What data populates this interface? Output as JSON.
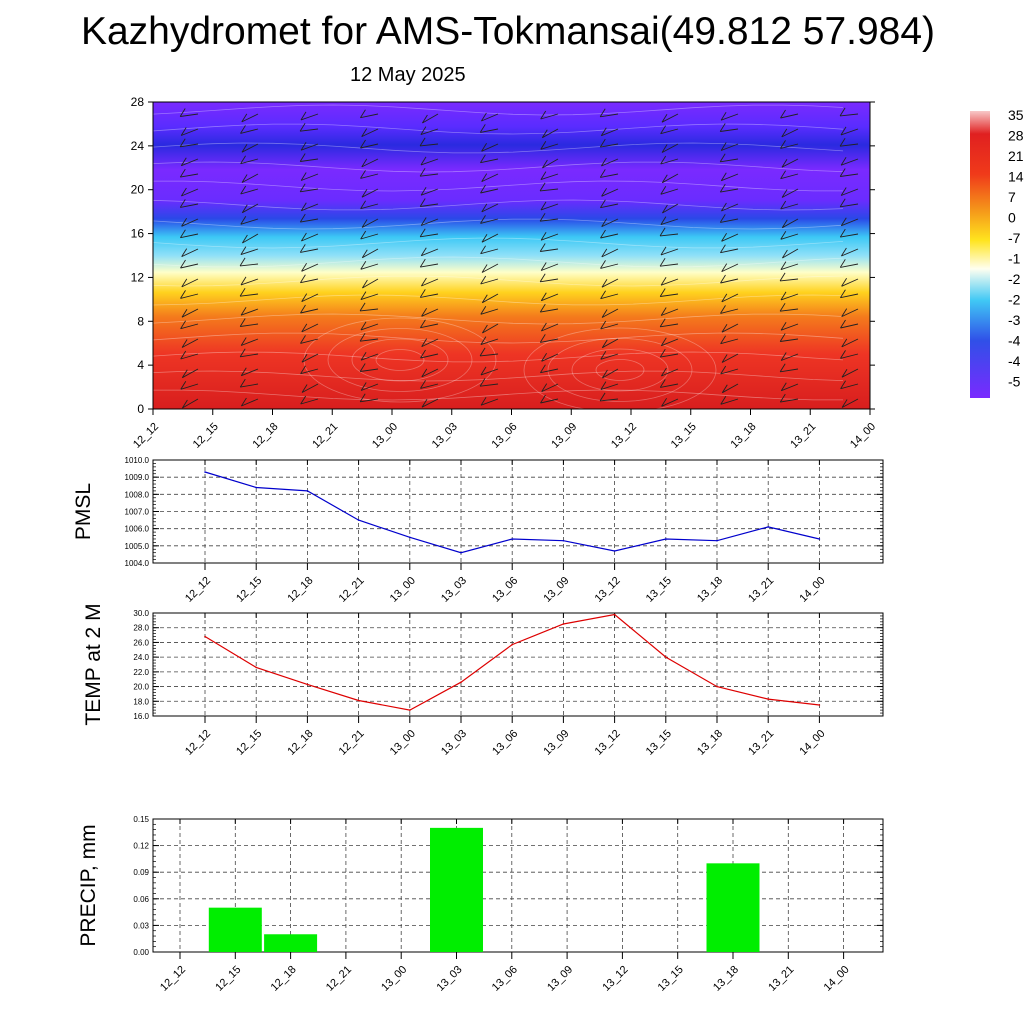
{
  "title": "Kazhydromet for AMS-Tokmansai(49.812 57.984)",
  "subtitle": "12 May 2025",
  "time_labels": [
    "12_12",
    "12_15",
    "12_18",
    "12_21",
    "13_00",
    "13_03",
    "13_06",
    "13_09",
    "13_12",
    "13_15",
    "13_18",
    "13_21",
    "14_00"
  ],
  "chart_data": [
    {
      "type": "heatmap",
      "xlabel": "",
      "ylabel": "",
      "x": [
        "12_12",
        "12_15",
        "12_18",
        "12_21",
        "13_00",
        "13_03",
        "13_06",
        "13_09",
        "13_12",
        "13_15",
        "13_18",
        "13_21",
        "14_00"
      ],
      "yticks": [
        0,
        4,
        8,
        12,
        16,
        20,
        24,
        28
      ],
      "ylim": [
        0,
        28
      ],
      "colorbar_labels": [
        "35",
        "28",
        "21",
        "14",
        "7",
        "0",
        "-7",
        "-1",
        "-2",
        "-2",
        "-3",
        "-4",
        "-4",
        "-5"
      ],
      "colors": [
        "#e8302a",
        "#f0701a",
        "#ffd21e",
        "#ffffc8",
        "#3cc8f5",
        "#2a30e8",
        "#7a2aff"
      ]
    },
    {
      "type": "line",
      "ylabel": "PMSL",
      "color": "#0000cc",
      "ylim": [
        1004.0,
        1010.0
      ],
      "yticks": [
        "1004.0",
        "1005.0",
        "1006.0",
        "1007.0",
        "1008.0",
        "1009.0",
        "1010.0"
      ],
      "x": [
        "12_12",
        "12_15",
        "12_18",
        "12_21",
        "13_00",
        "13_03",
        "13_06",
        "13_09",
        "13_12",
        "13_15",
        "13_18",
        "13_21",
        "14_00"
      ],
      "values": [
        1009.3,
        1008.4,
        1008.2,
        1006.5,
        1005.5,
        1004.6,
        1005.4,
        1005.3,
        1004.7,
        1005.4,
        1005.3,
        1006.1,
        1005.4
      ]
    },
    {
      "type": "line",
      "ylabel": "TEMP at 2 M",
      "color": "#dd0000",
      "ylim": [
        16.0,
        30.0
      ],
      "yticks": [
        "16.0",
        "18.0",
        "20.0",
        "22.0",
        "24.0",
        "26.0",
        "28.0",
        "30.0"
      ],
      "x": [
        "12_12",
        "12_15",
        "12_18",
        "12_21",
        "13_00",
        "13_03",
        "13_06",
        "13_09",
        "13_12",
        "13_15",
        "13_18",
        "13_21",
        "14_00"
      ],
      "values": [
        26.8,
        22.6,
        20.3,
        18.1,
        16.8,
        20.6,
        25.7,
        28.5,
        29.8,
        24.0,
        20.0,
        18.3,
        17.5
      ]
    },
    {
      "type": "bar",
      "ylabel": "PRECIP, mm",
      "color": "#00ee00",
      "ylim": [
        0.0,
        0.15
      ],
      "yticks": [
        "0.00",
        "0.03",
        "0.06",
        "0.09",
        "0.12",
        "0.15"
      ],
      "categories": [
        "12_12",
        "12_15",
        "12_18",
        "12_21",
        "13_00",
        "13_03",
        "13_06",
        "13_09",
        "13_12",
        "13_15",
        "13_18",
        "13_21",
        "14_00"
      ],
      "values": [
        0,
        0.05,
        0.02,
        0,
        0,
        0.14,
        0,
        0,
        0,
        0,
        0.1,
        0,
        0
      ]
    }
  ]
}
